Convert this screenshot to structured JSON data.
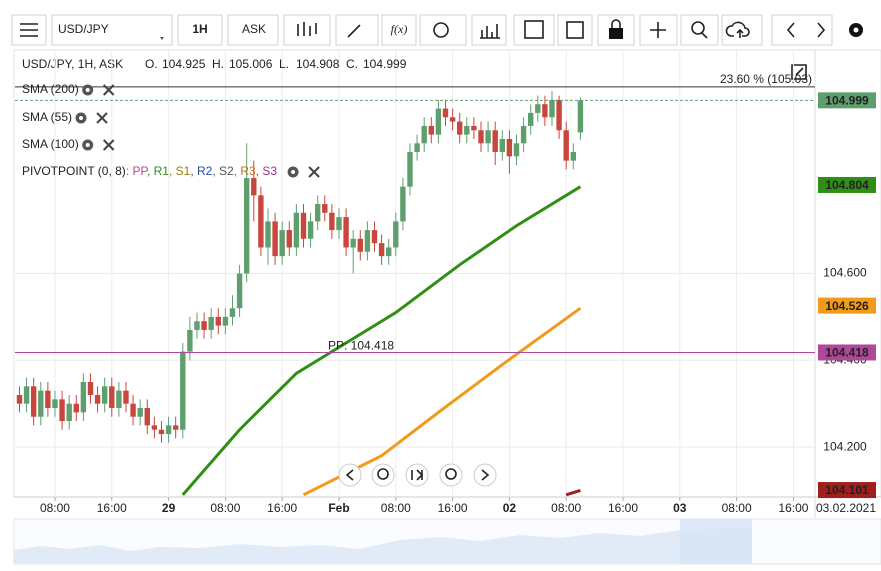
{
  "toolbar": {
    "symbol": "USD/JPY",
    "timeframe": "1H",
    "side": "ASK",
    "fx": "f(x)"
  },
  "header": {
    "instrument": "USD/JPY, 1H, ASK",
    "ohlc_labels": [
      "O.",
      "H.",
      "L.",
      "C."
    ]
  },
  "chart_data": {
    "type": "candlestick",
    "x": [
      -5,
      -4,
      -3,
      -2,
      -1,
      0,
      1,
      2,
      3,
      4,
      5,
      6,
      7,
      8,
      9,
      10,
      11,
      12,
      13,
      14,
      15,
      16,
      17,
      18,
      19,
      20,
      21,
      22,
      23,
      24,
      25,
      26,
      27,
      28,
      29,
      30,
      31,
      32,
      33,
      34,
      35,
      36,
      37,
      38,
      39,
      40,
      41,
      42,
      43,
      44,
      45,
      46,
      47,
      48,
      49,
      50,
      51,
      52,
      53,
      54,
      55,
      56,
      57,
      58,
      59,
      60,
      61,
      62,
      63,
      64,
      65,
      66,
      67,
      68,
      69,
      70,
      71,
      72,
      73,
      74
    ],
    "open": [
      104.32,
      104.3,
      104.34,
      104.27,
      104.33,
      104.29,
      104.31,
      104.26,
      104.3,
      104.28,
      104.35,
      104.32,
      104.3,
      104.34,
      104.29,
      104.33,
      104.3,
      104.27,
      104.29,
      104.25,
      104.24,
      104.23,
      104.25,
      104.24,
      104.42,
      104.47,
      104.49,
      104.47,
      104.5,
      104.48,
      104.5,
      104.52,
      104.6,
      104.82,
      104.78,
      104.66,
      104.72,
      104.64,
      104.7,
      104.66,
      104.74,
      104.68,
      104.72,
      104.76,
      104.74,
      104.7,
      104.73,
      104.66,
      104.68,
      104.65,
      104.7,
      104.67,
      104.64,
      104.66,
      104.72,
      104.8,
      104.88,
      104.9,
      104.94,
      104.92,
      104.98,
      104.96,
      104.95,
      104.92,
      104.94,
      104.93,
      104.9,
      104.93,
      104.88,
      104.91,
      104.87,
      104.9,
      104.94,
      104.97,
      104.99,
      104.96,
      105.0,
      104.93,
      104.86,
      104.925
    ],
    "high": [
      104.34,
      104.36,
      104.36,
      104.35,
      104.35,
      104.33,
      104.33,
      104.32,
      104.32,
      104.37,
      104.37,
      104.34,
      104.36,
      104.36,
      104.35,
      104.35,
      104.32,
      104.31,
      104.31,
      104.27,
      104.26,
      104.27,
      104.27,
      104.44,
      104.5,
      104.51,
      104.51,
      104.52,
      104.52,
      104.52,
      104.55,
      104.62,
      104.9,
      104.86,
      104.8,
      104.75,
      104.74,
      104.72,
      104.72,
      104.76,
      104.76,
      104.74,
      104.78,
      104.78,
      104.76,
      104.75,
      104.75,
      104.7,
      104.7,
      104.72,
      104.72,
      104.69,
      104.68,
      104.74,
      104.82,
      104.9,
      104.92,
      104.96,
      104.96,
      105.0,
      105.0,
      104.98,
      104.97,
      104.96,
      104.96,
      104.95,
      104.95,
      104.95,
      104.93,
      104.93,
      104.92,
      104.96,
      104.99,
      105.01,
      105.01,
      105.02,
      105.01,
      104.95,
      104.9,
      105.006
    ],
    "low": [
      104.28,
      104.28,
      104.25,
      104.25,
      104.27,
      104.27,
      104.24,
      104.24,
      104.26,
      104.26,
      104.3,
      104.28,
      104.28,
      104.27,
      104.27,
      104.28,
      104.25,
      104.25,
      104.23,
      104.22,
      104.21,
      104.21,
      104.22,
      104.22,
      104.4,
      104.45,
      104.45,
      104.45,
      104.46,
      104.46,
      104.48,
      104.5,
      104.58,
      104.72,
      104.64,
      104.62,
      104.62,
      104.62,
      104.64,
      104.64,
      104.66,
      104.66,
      104.7,
      104.72,
      104.68,
      104.68,
      104.64,
      104.6,
      104.63,
      104.63,
      104.65,
      104.62,
      104.62,
      104.64,
      104.7,
      104.78,
      104.86,
      104.88,
      104.9,
      104.9,
      104.94,
      104.93,
      104.9,
      104.9,
      104.91,
      104.88,
      104.88,
      104.85,
      104.86,
      104.83,
      104.85,
      104.88,
      104.92,
      104.95,
      104.94,
      104.94,
      104.91,
      104.84,
      104.84,
      104.908
    ],
    "close": [
      104.3,
      104.34,
      104.27,
      104.33,
      104.29,
      104.31,
      104.26,
      104.3,
      104.28,
      104.35,
      104.32,
      104.3,
      104.34,
      104.29,
      104.33,
      104.3,
      104.27,
      104.29,
      104.25,
      104.24,
      104.23,
      104.25,
      104.24,
      104.42,
      104.47,
      104.49,
      104.47,
      104.5,
      104.48,
      104.5,
      104.52,
      104.6,
      104.82,
      104.78,
      104.66,
      104.72,
      104.64,
      104.7,
      104.66,
      104.74,
      104.68,
      104.72,
      104.76,
      104.74,
      104.7,
      104.73,
      104.66,
      104.68,
      104.65,
      104.7,
      104.67,
      104.64,
      104.66,
      104.72,
      104.8,
      104.88,
      104.9,
      104.94,
      104.92,
      104.98,
      104.96,
      104.95,
      104.92,
      104.94,
      104.93,
      104.9,
      104.93,
      104.88,
      104.91,
      104.87,
      104.9,
      104.94,
      104.97,
      104.99,
      104.96,
      105.0,
      104.93,
      104.86,
      104.88,
      104.999
    ],
    "up_color": "#5f9f6e",
    "down_color": "#c9463d",
    "series": [
      {
        "name": "SMA (200)",
        "color": "#a01e1e",
        "x": [
          72,
          74
        ],
        "values": [
          104.09,
          104.1
        ]
      },
      {
        "name": "SMA (55)",
        "color": "#2f8f14",
        "x": [
          18,
          26,
          34,
          40,
          48,
          57,
          65,
          74
        ],
        "values": [
          104.09,
          104.24,
          104.37,
          104.43,
          104.51,
          104.62,
          104.71,
          104.8
        ]
      },
      {
        "name": "SMA (100)",
        "color": "#f29a1a",
        "x": [
          35,
          46,
          54,
          63,
          74
        ],
        "values": [
          104.09,
          104.18,
          104.28,
          104.39,
          104.52
        ]
      }
    ],
    "pivot": {
      "name": "PIVOTPOINT (0, 8)",
      "parts": [
        {
          "text": ": PP",
          "color": "#b0489a"
        },
        {
          "text": ", R1",
          "color": "#2f8f14"
        },
        {
          "text": ", S1",
          "color": "#9a7a10"
        },
        {
          "text": ", R2",
          "color": "#2a4aa0"
        },
        {
          "text": ", S2",
          "color": "#555555"
        },
        {
          "text": ", R3",
          "color": "#c07020"
        },
        {
          "text": ", S3",
          "color": "#a0308a"
        }
      ],
      "level_label": "PP: 104.418",
      "level": 104.418,
      "color": "#b0489a"
    },
    "fib": {
      "label": "23.60 % (105.03)",
      "value": 105.03
    },
    "price_tags": [
      {
        "value": 104.999,
        "color": "#5f9f6e"
      },
      {
        "value": 104.804,
        "color": "#2f8f14"
      },
      {
        "value": 104.526,
        "color": "#f29a1a"
      },
      {
        "value": 104.418,
        "color": "#b0489a"
      },
      {
        "value": 104.101,
        "color": "#a01e1e"
      }
    ],
    "current_date": "03.02.2021",
    "xlim": [
      -5.63,
      107.04
    ],
    "xticks": [
      {
        "value": 0,
        "label": "08:00"
      },
      {
        "value": 8,
        "label": "16:00"
      },
      {
        "value": 16,
        "label": "29"
      },
      {
        "value": 24,
        "label": "08:00"
      },
      {
        "value": 32,
        "label": "16:00"
      },
      {
        "value": 40,
        "label": "Feb"
      },
      {
        "value": 48,
        "label": "08:00"
      },
      {
        "value": 56,
        "label": "16:00"
      },
      {
        "value": 64,
        "label": "02"
      },
      {
        "value": 72,
        "label": "08:00"
      },
      {
        "value": 80,
        "label": "16:00"
      },
      {
        "value": 88,
        "label": "03"
      },
      {
        "value": 96,
        "label": "08:00"
      },
      {
        "value": 104,
        "label": "16:00"
      }
    ],
    "ylim": [
      104.085,
      105.115
    ],
    "yticks": [
      {
        "value": 104.2,
        "label": "104.200"
      },
      {
        "value": 104.4,
        "label": "104.400"
      },
      {
        "value": 104.6,
        "label": "104.600"
      }
    ],
    "grid": true
  }
}
